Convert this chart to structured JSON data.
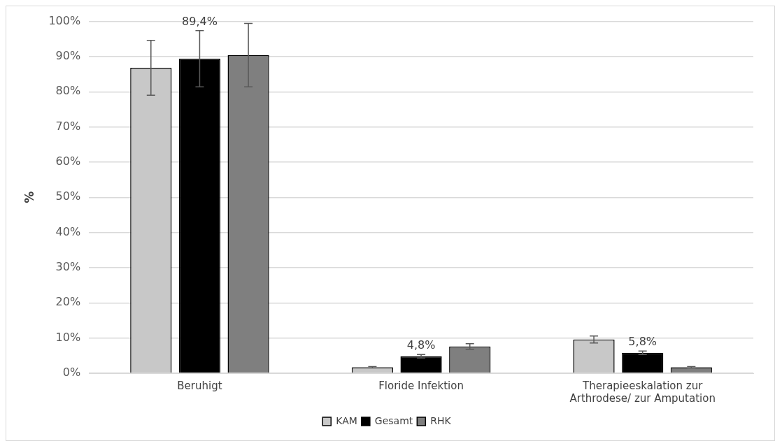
{
  "chart_data": {
    "type": "bar",
    "ylabel": "%",
    "categories": [
      "Beruhigt",
      "Floride Infektion",
      "Therapieeskalation zur Arthrodese/ zur Amputation"
    ],
    "series": [
      {
        "name": "KAM",
        "color": "#c8c8c8",
        "values": [
          86.8,
          1.7,
          9.6
        ],
        "errors": [
          7.8,
          0.2,
          1
        ]
      },
      {
        "name": "Gesamt",
        "color": "#000000",
        "values": [
          89.4,
          4.8,
          5.8
        ],
        "errors": [
          8,
          0.5,
          0.5
        ],
        "value_labels": [
          "89,4%",
          "4,8%",
          "5,8%"
        ]
      },
      {
        "name": "RHK",
        "color": "#7f7f7f",
        "values": [
          90.4,
          7.6,
          1.7
        ],
        "errors": [
          9,
          0.8,
          0.2
        ]
      }
    ],
    "ylim": [
      0,
      100
    ],
    "yticks": [
      {
        "value": 0,
        "label": "0%"
      },
      {
        "value": 10,
        "label": "10%"
      },
      {
        "value": 20,
        "label": "20%"
      },
      {
        "value": 30,
        "label": "30%"
      },
      {
        "value": 40,
        "label": "40%"
      },
      {
        "value": 50,
        "label": "50%"
      },
      {
        "value": 60,
        "label": "60%"
      },
      {
        "value": 70,
        "label": "70%"
      },
      {
        "value": 80,
        "label": "80%"
      },
      {
        "value": 90,
        "label": "90%"
      },
      {
        "value": 100,
        "label": "100%"
      }
    ],
    "grid": "y",
    "legend": "bottom"
  }
}
